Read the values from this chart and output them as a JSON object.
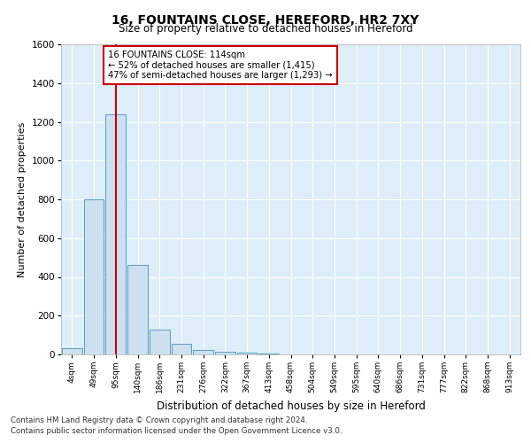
{
  "title1": "16, FOUNTAINS CLOSE, HEREFORD, HR2 7XY",
  "title2": "Size of property relative to detached houses in Hereford",
  "xlabel": "Distribution of detached houses by size in Hereford",
  "ylabel": "Number of detached properties",
  "bin_labels": [
    "4sqm",
    "49sqm",
    "95sqm",
    "140sqm",
    "186sqm",
    "231sqm",
    "276sqm",
    "322sqm",
    "367sqm",
    "413sqm",
    "458sqm",
    "504sqm",
    "549sqm",
    "595sqm",
    "640sqm",
    "686sqm",
    "731sqm",
    "777sqm",
    "822sqm",
    "868sqm",
    "913sqm"
  ],
  "bar_values": [
    30,
    800,
    1240,
    460,
    130,
    55,
    25,
    15,
    10,
    5,
    0,
    0,
    0,
    0,
    0,
    0,
    0,
    0,
    0,
    0,
    0
  ],
  "bar_color": "#cce0f0",
  "bar_edge_color": "#5a9bbf",
  "property_line_x": 2,
  "annotation_text": "16 FOUNTAINS CLOSE: 114sqm\n← 52% of detached houses are smaller (1,415)\n47% of semi-detached houses are larger (1,293) →",
  "annotation_box_color": "#ffffff",
  "annotation_box_edge": "#cc0000",
  "vline_color": "#cc0000",
  "ylim": [
    0,
    1600
  ],
  "yticks": [
    0,
    200,
    400,
    600,
    800,
    1000,
    1200,
    1400,
    1600
  ],
  "footer1": "Contains HM Land Registry data © Crown copyright and database right 2024.",
  "footer2": "Contains public sector information licensed under the Open Government Licence v3.0.",
  "bg_color": "#ddeef8",
  "grid_color": "#ffffff"
}
